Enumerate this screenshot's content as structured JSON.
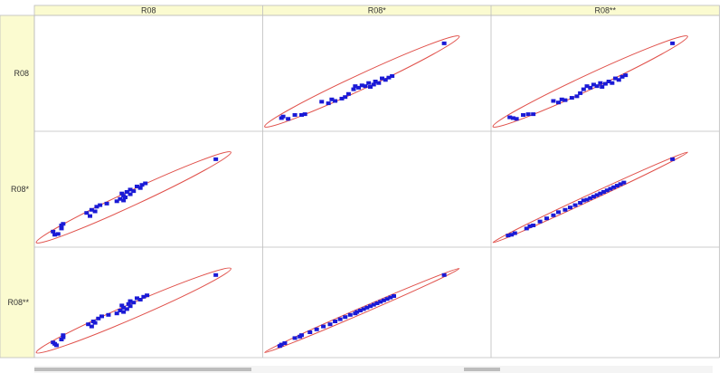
{
  "chart_data": {
    "type": "scatter",
    "title": "",
    "variables": [
      "R08",
      "R08*",
      "R08**"
    ],
    "point_color": "#1a1ad6",
    "ellipse_color": "#e0504a",
    "header_bg": "#fbfbd0",
    "grid_color": "#bdbdbd",
    "diagonal_empty": true,
    "panels": [
      {
        "row": 0,
        "col": 1,
        "x_var": "R08*",
        "y_var": "R08",
        "correlation": 0.97,
        "xlim": [
          0,
          1
        ],
        "ylim": [
          0,
          1
        ],
        "points": [
          [
            0.02,
            0.03
          ],
          [
            0.03,
            0.05
          ],
          [
            0.06,
            0.02
          ],
          [
            0.1,
            0.07
          ],
          [
            0.14,
            0.07
          ],
          [
            0.16,
            0.08
          ],
          [
            0.26,
            0.24
          ],
          [
            0.3,
            0.22
          ],
          [
            0.32,
            0.27
          ],
          [
            0.34,
            0.25
          ],
          [
            0.38,
            0.28
          ],
          [
            0.4,
            0.3
          ],
          [
            0.42,
            0.34
          ],
          [
            0.45,
            0.4
          ],
          [
            0.46,
            0.44
          ],
          [
            0.48,
            0.42
          ],
          [
            0.5,
            0.45
          ],
          [
            0.52,
            0.44
          ],
          [
            0.54,
            0.48
          ],
          [
            0.55,
            0.43
          ],
          [
            0.57,
            0.46
          ],
          [
            0.58,
            0.5
          ],
          [
            0.6,
            0.48
          ],
          [
            0.62,
            0.54
          ],
          [
            0.64,
            0.52
          ],
          [
            0.66,
            0.55
          ],
          [
            0.68,
            0.57
          ],
          [
            0.99,
            0.99
          ]
        ]
      },
      {
        "row": 0,
        "col": 2,
        "x_var": "R08**",
        "y_var": "R08",
        "correlation": 0.97,
        "xlim": [
          0,
          1
        ],
        "ylim": [
          0,
          1
        ],
        "points": [
          [
            0.02,
            0.04
          ],
          [
            0.04,
            0.03
          ],
          [
            0.06,
            0.02
          ],
          [
            0.1,
            0.07
          ],
          [
            0.13,
            0.08
          ],
          [
            0.16,
            0.08
          ],
          [
            0.28,
            0.25
          ],
          [
            0.31,
            0.23
          ],
          [
            0.33,
            0.27
          ],
          [
            0.35,
            0.26
          ],
          [
            0.39,
            0.29
          ],
          [
            0.42,
            0.31
          ],
          [
            0.44,
            0.35
          ],
          [
            0.46,
            0.4
          ],
          [
            0.48,
            0.44
          ],
          [
            0.5,
            0.42
          ],
          [
            0.52,
            0.46
          ],
          [
            0.54,
            0.44
          ],
          [
            0.56,
            0.48
          ],
          [
            0.57,
            0.43
          ],
          [
            0.59,
            0.47
          ],
          [
            0.61,
            0.5
          ],
          [
            0.63,
            0.48
          ],
          [
            0.65,
            0.54
          ],
          [
            0.67,
            0.52
          ],
          [
            0.69,
            0.56
          ],
          [
            0.71,
            0.58
          ],
          [
            0.99,
            0.99
          ]
        ]
      },
      {
        "row": 1,
        "col": 0,
        "x_var": "R08",
        "y_var": "R08*",
        "correlation": 0.97,
        "xlim": [
          0,
          1
        ],
        "ylim": [
          0,
          1
        ],
        "points": [
          [
            0.03,
            0.02
          ],
          [
            0.05,
            0.03
          ],
          [
            0.02,
            0.06
          ],
          [
            0.07,
            0.1
          ],
          [
            0.07,
            0.14
          ],
          [
            0.08,
            0.16
          ],
          [
            0.24,
            0.26
          ],
          [
            0.22,
            0.3
          ],
          [
            0.27,
            0.32
          ],
          [
            0.25,
            0.34
          ],
          [
            0.28,
            0.38
          ],
          [
            0.3,
            0.4
          ],
          [
            0.34,
            0.42
          ],
          [
            0.4,
            0.45
          ],
          [
            0.44,
            0.46
          ],
          [
            0.42,
            0.48
          ],
          [
            0.45,
            0.5
          ],
          [
            0.44,
            0.52
          ],
          [
            0.48,
            0.54
          ],
          [
            0.43,
            0.55
          ],
          [
            0.46,
            0.57
          ],
          [
            0.5,
            0.58
          ],
          [
            0.48,
            0.6
          ],
          [
            0.54,
            0.62
          ],
          [
            0.52,
            0.64
          ],
          [
            0.55,
            0.66
          ],
          [
            0.57,
            0.68
          ],
          [
            0.99,
            0.99
          ]
        ]
      },
      {
        "row": 1,
        "col": 2,
        "x_var": "R08**",
        "y_var": "R08*",
        "correlation": 0.995,
        "xlim": [
          0,
          1
        ],
        "ylim": [
          0,
          1
        ],
        "points": [
          [
            0.01,
            0.01
          ],
          [
            0.03,
            0.02
          ],
          [
            0.05,
            0.04
          ],
          [
            0.12,
            0.1
          ],
          [
            0.14,
            0.13
          ],
          [
            0.16,
            0.14
          ],
          [
            0.2,
            0.19
          ],
          [
            0.24,
            0.23
          ],
          [
            0.28,
            0.27
          ],
          [
            0.31,
            0.31
          ],
          [
            0.35,
            0.34
          ],
          [
            0.38,
            0.37
          ],
          [
            0.41,
            0.4
          ],
          [
            0.44,
            0.43
          ],
          [
            0.46,
            0.46
          ],
          [
            0.48,
            0.47
          ],
          [
            0.5,
            0.49
          ],
          [
            0.52,
            0.51
          ],
          [
            0.54,
            0.53
          ],
          [
            0.56,
            0.55
          ],
          [
            0.58,
            0.57
          ],
          [
            0.6,
            0.59
          ],
          [
            0.62,
            0.61
          ],
          [
            0.64,
            0.63
          ],
          [
            0.66,
            0.65
          ],
          [
            0.68,
            0.67
          ],
          [
            0.7,
            0.69
          ],
          [
            0.99,
            0.99
          ]
        ]
      },
      {
        "row": 2,
        "col": 0,
        "x_var": "R08",
        "y_var": "R08**",
        "correlation": 0.97,
        "xlim": [
          0,
          1
        ],
        "ylim": [
          0,
          1
        ],
        "points": [
          [
            0.04,
            0.02
          ],
          [
            0.03,
            0.04
          ],
          [
            0.02,
            0.06
          ],
          [
            0.07,
            0.1
          ],
          [
            0.08,
            0.13
          ],
          [
            0.08,
            0.16
          ],
          [
            0.25,
            0.28
          ],
          [
            0.23,
            0.31
          ],
          [
            0.27,
            0.33
          ],
          [
            0.26,
            0.35
          ],
          [
            0.29,
            0.39
          ],
          [
            0.31,
            0.42
          ],
          [
            0.35,
            0.44
          ],
          [
            0.4,
            0.46
          ],
          [
            0.44,
            0.48
          ],
          [
            0.42,
            0.5
          ],
          [
            0.46,
            0.52
          ],
          [
            0.44,
            0.54
          ],
          [
            0.48,
            0.56
          ],
          [
            0.43,
            0.57
          ],
          [
            0.47,
            0.59
          ],
          [
            0.5,
            0.61
          ],
          [
            0.48,
            0.63
          ],
          [
            0.54,
            0.65
          ],
          [
            0.52,
            0.67
          ],
          [
            0.56,
            0.69
          ],
          [
            0.58,
            0.71
          ],
          [
            0.99,
            0.99
          ]
        ]
      },
      {
        "row": 2,
        "col": 1,
        "x_var": "R08*",
        "y_var": "R08**",
        "correlation": 0.995,
        "xlim": [
          0,
          1
        ],
        "ylim": [
          0,
          1
        ],
        "points": [
          [
            0.01,
            0.01
          ],
          [
            0.02,
            0.03
          ],
          [
            0.04,
            0.05
          ],
          [
            0.1,
            0.12
          ],
          [
            0.13,
            0.14
          ],
          [
            0.14,
            0.16
          ],
          [
            0.19,
            0.2
          ],
          [
            0.23,
            0.24
          ],
          [
            0.27,
            0.28
          ],
          [
            0.31,
            0.31
          ],
          [
            0.34,
            0.35
          ],
          [
            0.37,
            0.38
          ],
          [
            0.4,
            0.41
          ],
          [
            0.43,
            0.44
          ],
          [
            0.46,
            0.46
          ],
          [
            0.47,
            0.48
          ],
          [
            0.49,
            0.5
          ],
          [
            0.51,
            0.52
          ],
          [
            0.53,
            0.54
          ],
          [
            0.55,
            0.56
          ],
          [
            0.57,
            0.58
          ],
          [
            0.59,
            0.6
          ],
          [
            0.61,
            0.62
          ],
          [
            0.63,
            0.64
          ],
          [
            0.65,
            0.66
          ],
          [
            0.67,
            0.68
          ],
          [
            0.69,
            0.7
          ],
          [
            0.99,
            0.99
          ]
        ]
      }
    ]
  }
}
